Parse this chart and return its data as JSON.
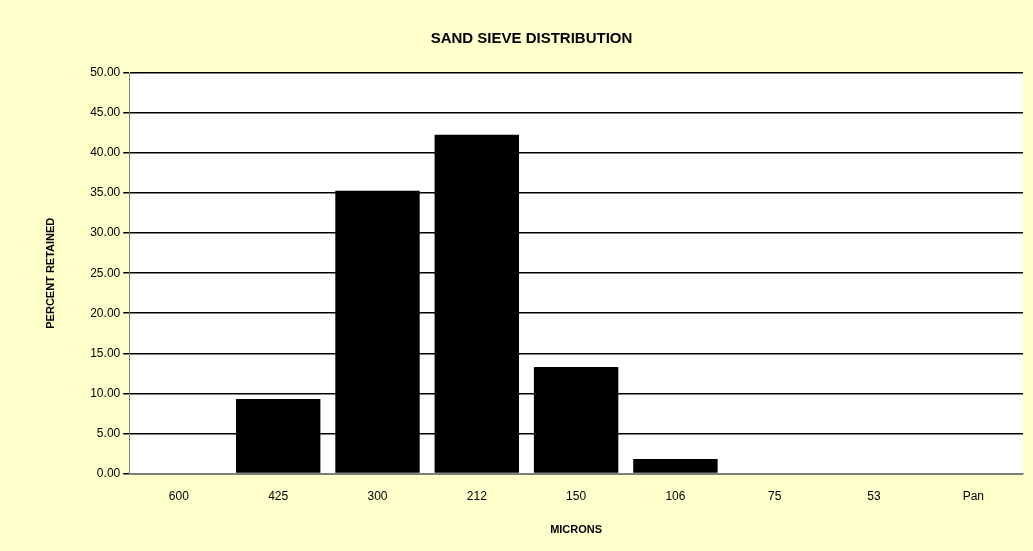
{
  "chart_data": {
    "type": "bar",
    "title": "SAND SIEVE DISTRIBUTION",
    "xlabel": "MICRONS",
    "ylabel": "PERCENT RETAINED",
    "categories": [
      "600",
      "425",
      "300",
      "212",
      "150",
      "106",
      "75",
      "53",
      "Pan"
    ],
    "values": [
      0,
      9.3,
      35.3,
      42.3,
      13.3,
      1.8,
      0,
      0,
      0
    ],
    "color": "#000000",
    "ylim": [
      0,
      50
    ],
    "yticks": [
      {
        "value": 0,
        "label": "0.00"
      },
      {
        "value": 5,
        "label": "5.00"
      },
      {
        "value": 10,
        "label": "10.00"
      },
      {
        "value": 15,
        "label": "15.00"
      },
      {
        "value": 20,
        "label": "20.00"
      },
      {
        "value": 25,
        "label": "25.00"
      },
      {
        "value": 30,
        "label": "30.00"
      },
      {
        "value": 35,
        "label": "35.00"
      },
      {
        "value": 40,
        "label": "40.00"
      },
      {
        "value": 45,
        "label": "45.00"
      },
      {
        "value": 50,
        "label": "50.00"
      }
    ],
    "grid": "y",
    "legend": false
  }
}
